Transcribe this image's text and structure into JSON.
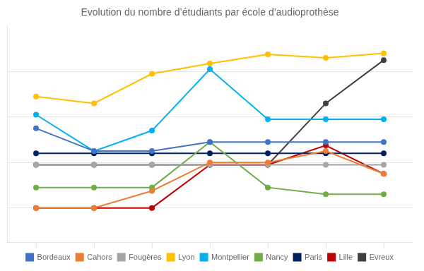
{
  "chart_data": {
    "type": "line",
    "title": "Evolution du nombre d’étudiants par école d’audioprothèse",
    "x": [
      1,
      2,
      3,
      4,
      5,
      6,
      7
    ],
    "series": [
      {
        "name": "Bordeaux",
        "color": "#4472C4",
        "values": [
          230,
          210,
          210,
          218,
          218,
          218,
          218
        ]
      },
      {
        "name": "Cahors",
        "color": "#ED7D31",
        "values": [
          160,
          160,
          175,
          200,
          200,
          210,
          190
        ]
      },
      {
        "name": "Fougères",
        "color": "#A5A5A5",
        "values": [
          198,
          198,
          198,
          198,
          198,
          198,
          198
        ]
      },
      {
        "name": "Lyon",
        "color": "#FFC000",
        "values": [
          258,
          252,
          278,
          287,
          295,
          292,
          296
        ]
      },
      {
        "name": "Montpellier",
        "color": "#00B0F0",
        "values": [
          242,
          210,
          228,
          282,
          238,
          238,
          238
        ]
      },
      {
        "name": "Nancy",
        "color": "#70AD47",
        "values": [
          178,
          178,
          178,
          218,
          178,
          172,
          172
        ]
      },
      {
        "name": "Paris",
        "color": "#002060",
        "values": [
          208,
          208,
          208,
          208,
          208,
          208,
          208
        ]
      },
      {
        "name": "Lille",
        "color": "#C00000",
        "values": [
          160,
          160,
          160,
          198,
          198,
          215,
          190
        ]
      },
      {
        "name": "Evreux",
        "color": "#404040",
        "values": [
          198,
          198,
          198,
          198,
          198,
          252,
          290
        ]
      }
    ],
    "xlim": [
      0.5,
      7.5
    ],
    "xticks": [
      1,
      2,
      3,
      4,
      5,
      6,
      7
    ],
    "ylim": [
      130,
      320
    ],
    "yticks": [
      160,
      200,
      240,
      280
    ],
    "grid": true,
    "legend": "bottom",
    "marker": "circle",
    "tick_labels": false
  }
}
